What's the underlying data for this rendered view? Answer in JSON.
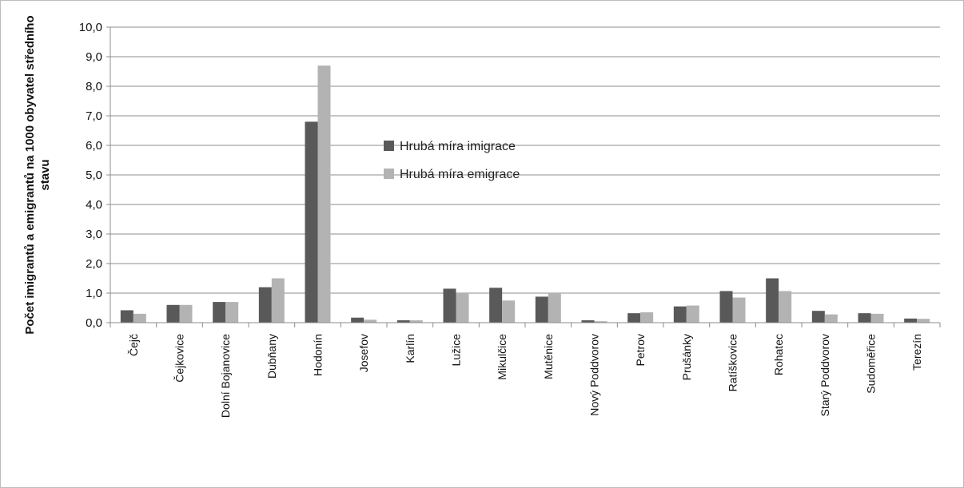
{
  "chart_data": {
    "type": "bar",
    "title": "",
    "xlabel": "",
    "ylabel_lines": [
      "Počet imigrantů a emigrantů na 1000 obyvatel středního",
      "stavu"
    ],
    "ylim": [
      0,
      10
    ],
    "yticks": [
      "0,0",
      "1,0",
      "2,0",
      "3,0",
      "4,0",
      "5,0",
      "6,0",
      "7,0",
      "8,0",
      "9,0",
      "10,0"
    ],
    "grid": true,
    "legend_position": "center",
    "categories": [
      "Čejč",
      "Čejkovice",
      "Dolní Bojanovice",
      "Dubňany",
      "Hodonín",
      "Josefov",
      "Karlín",
      "Lužice",
      "Mikulčice",
      "Mutěnice",
      "Nový Poddvorov",
      "Petrov",
      "Prušánky",
      "Ratíškovice",
      "Rohatec",
      "Starý Poddvorov",
      "Sudoměřice",
      "Terezín"
    ],
    "series": [
      {
        "name": "Hrubá míra imigrace",
        "color": "#595959",
        "values": [
          0.42,
          0.6,
          0.7,
          1.2,
          6.8,
          0.17,
          0.08,
          1.15,
          1.18,
          0.88,
          0.08,
          0.32,
          0.55,
          1.07,
          1.5,
          0.4,
          0.32,
          0.14
        ]
      },
      {
        "name": "Hrubá míra emigrace",
        "color": "#b3b3b3",
        "values": [
          0.3,
          0.6,
          0.7,
          1.5,
          8.7,
          0.1,
          0.08,
          1.02,
          0.75,
          1.0,
          0.05,
          0.35,
          0.58,
          0.85,
          1.07,
          0.28,
          0.3,
          0.13
        ]
      }
    ]
  }
}
